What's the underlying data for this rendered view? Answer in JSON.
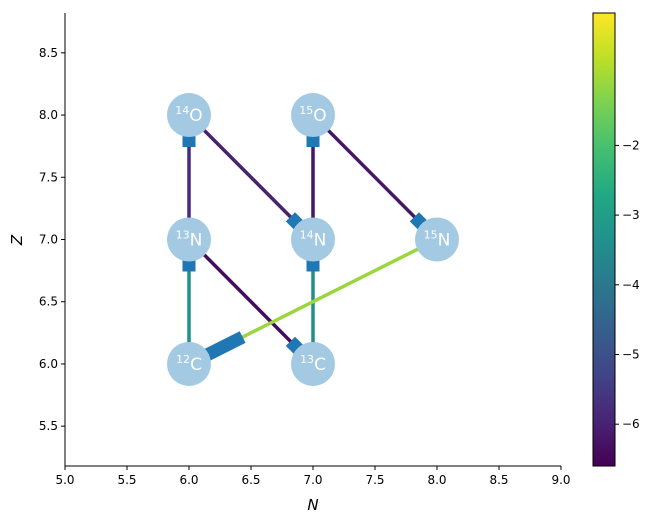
{
  "chart_data": {
    "type": "network",
    "title": "",
    "xlabel": "N",
    "ylabel": "Z",
    "xlim": [
      5.0,
      9.0
    ],
    "ylim": [
      5.18,
      8.82
    ],
    "xticks": [
      "5.0",
      "5.5",
      "6.0",
      "6.5",
      "7.0",
      "7.5",
      "8.0",
      "8.5",
      "9.0"
    ],
    "yticks": [
      "5.5",
      "6.0",
      "6.5",
      "7.0",
      "7.5",
      "8.0",
      "8.5"
    ],
    "node_color": "#a3c9e3",
    "arrow_color": "#1f77b4",
    "nodes": [
      {
        "id": "c12",
        "mass": "12",
        "element": "C",
        "n": 6,
        "z": 6
      },
      {
        "id": "c13",
        "mass": "13",
        "element": "C",
        "n": 7,
        "z": 6
      },
      {
        "id": "n13",
        "mass": "13",
        "element": "N",
        "n": 6,
        "z": 7
      },
      {
        "id": "n14",
        "mass": "14",
        "element": "N",
        "n": 7,
        "z": 7
      },
      {
        "id": "n15",
        "mass": "15",
        "element": "N",
        "n": 8,
        "z": 7
      },
      {
        "id": "o14",
        "mass": "14",
        "element": "O",
        "n": 6,
        "z": 8
      },
      {
        "id": "o15",
        "mass": "15",
        "element": "O",
        "n": 7,
        "z": 8
      }
    ],
    "edges": [
      {
        "from": "c12",
        "to": "n13",
        "value": -3.4
      },
      {
        "from": "n13",
        "to": "c13",
        "value": -6.4
      },
      {
        "from": "c13",
        "to": "n14",
        "value": -3.4
      },
      {
        "from": "n13",
        "to": "o14",
        "value": -5.8
      },
      {
        "from": "o14",
        "to": "n14",
        "value": -6.0
      },
      {
        "from": "n14",
        "to": "o15",
        "value": -6.2
      },
      {
        "from": "o15",
        "to": "n15",
        "value": -6.2
      },
      {
        "from": "n15",
        "to": "c12",
        "value": -1.1
      }
    ],
    "colorbar": {
      "colormap": "viridis",
      "range": [
        -6.6,
        -0.1
      ],
      "ticks": [
        "−6",
        "−5",
        "−4",
        "−3",
        "−2"
      ]
    }
  }
}
